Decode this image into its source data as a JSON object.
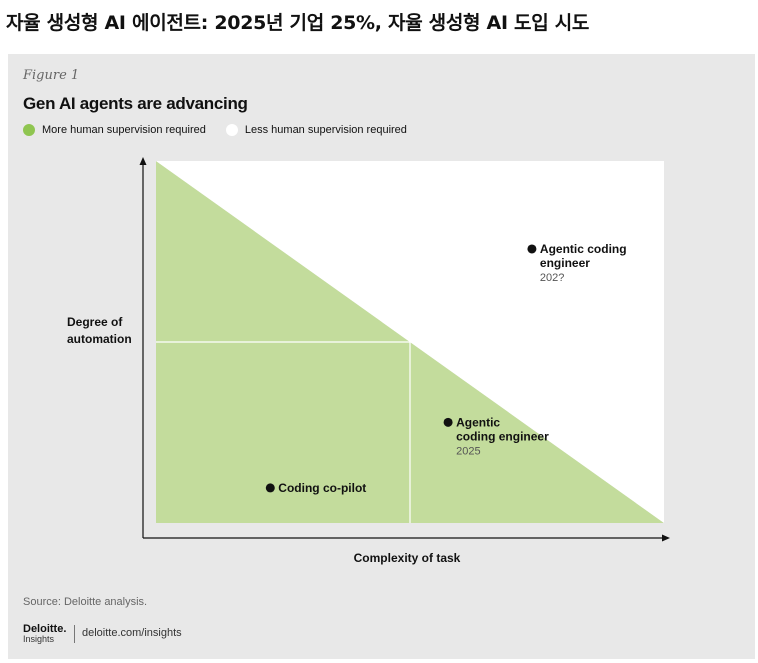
{
  "page": {
    "headline": "자율 생성형 AI 에이전트: 2025년 기업 25%, 자율 생성형 AI 도입 시도"
  },
  "figure": {
    "label": "Figure 1",
    "source": "Source: Deloitte analysis.",
    "logo_main": "Deloitte.",
    "logo_sub": "Insights",
    "site": "deloitte.com/insights"
  },
  "colors": {
    "green_area": "#c3dc9c",
    "white_area": "#ffffff",
    "panel_bg": "#e8e8e8",
    "legend_green": "#8fc550",
    "point": "#111111"
  },
  "chart_data": {
    "type": "scatter",
    "title": "Gen AI agents are advancing",
    "xlabel": "Complexity of task",
    "ylabel": [
      "Degree of",
      "automation"
    ],
    "xlim": [
      0,
      1
    ],
    "ylim": [
      0,
      1
    ],
    "grid": true,
    "legend_placement": "top-left",
    "legend": [
      {
        "label": "More human supervision required",
        "color": "#8fc550"
      },
      {
        "label": "Less human supervision required",
        "color": "#ffffff"
      }
    ],
    "regions": [
      {
        "name": "More human supervision required",
        "polygon": [
          [
            0,
            1
          ],
          [
            0,
            0
          ],
          [
            1,
            0
          ]
        ]
      },
      {
        "name": "Less human supervision required",
        "polygon": [
          [
            0,
            1
          ],
          [
            1,
            1
          ],
          [
            1,
            0
          ]
        ]
      }
    ],
    "points": [
      {
        "label": [
          "Coding co-pilot"
        ],
        "year": "",
        "x": 0.225,
        "y": 0.097
      },
      {
        "label": [
          "Agentic",
          "coding engineer"
        ],
        "year": "2025",
        "x": 0.575,
        "y": 0.278
      },
      {
        "label": [
          "Agentic coding",
          "engineer"
        ],
        "year": "202?",
        "x": 0.74,
        "y": 0.757
      }
    ]
  }
}
